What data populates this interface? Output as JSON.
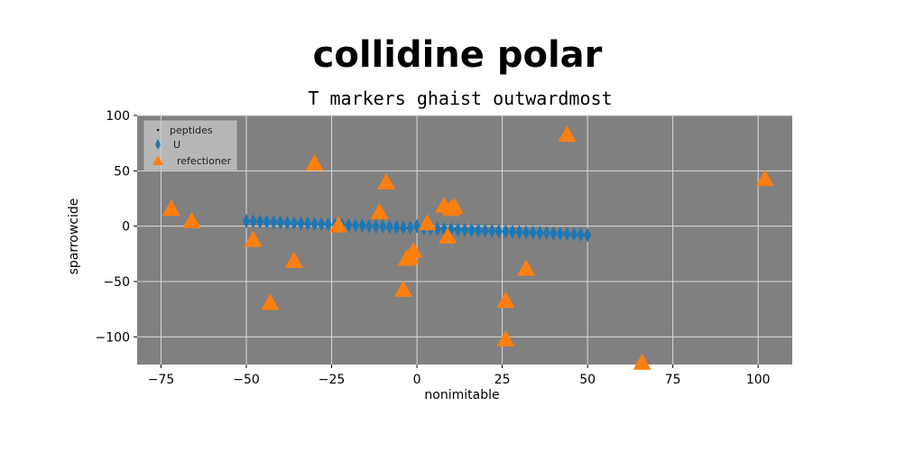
{
  "chart_data": {
    "type": "scatter",
    "title": "collidine polar",
    "subtitle": "T markers ghaist outwardmost",
    "xlabel": "nonimitable",
    "ylabel": "sparrowcide",
    "xlim": [
      -82,
      110
    ],
    "ylim": [
      -125,
      100
    ],
    "x_ticks": [
      "−75",
      "−50",
      "−25",
      "0",
      "25",
      "50",
      "75",
      "100"
    ],
    "x_tick_values": [
      -75,
      -50,
      -25,
      0,
      25,
      50,
      75,
      100
    ],
    "y_ticks": [
      "100",
      "50",
      "0",
      "−50",
      "−100"
    ],
    "y_tick_values": [
      100,
      50,
      0,
      -50,
      -100
    ],
    "grid": true,
    "legend_position": "top-left",
    "background_color": "#808080",
    "series": [
      {
        "name": "peptides",
        "marker": "point",
        "color": "#222222",
        "x": [],
        "y": []
      },
      {
        "name": "U",
        "marker": "thin_diamond",
        "color": "#1f77b4",
        "x": [
          -50,
          -48,
          -46,
          -44,
          -42,
          -40,
          -38,
          -36,
          -34,
          -32,
          -30,
          -28,
          -26,
          -24,
          -22,
          -20,
          -18,
          -16,
          -14,
          -12,
          -10,
          -8,
          -6,
          -4,
          -2,
          0,
          2,
          4,
          6,
          8,
          10,
          12,
          14,
          16,
          18,
          20,
          22,
          24,
          26,
          28,
          30,
          32,
          34,
          36,
          38,
          40,
          42,
          44,
          46,
          48,
          50
        ],
        "y": [
          4.5,
          4.4,
          4.1,
          3.9,
          3.7,
          3.4,
          3.2,
          2.9,
          2.6,
          2.4,
          2.1,
          1.9,
          1.7,
          1.3,
          1.1,
          0.8,
          0.6,
          0.4,
          0.1,
          -0.2,
          -0.4,
          -0.6,
          -0.9,
          -1.1,
          -1.3,
          0,
          -1.8,
          -2.1,
          -2.4,
          -2.6,
          -2.8,
          -3.1,
          -3.3,
          -3.6,
          -3.9,
          -4.1,
          -4.3,
          -4.6,
          -4.8,
          -5.1,
          -5.4,
          -5.6,
          -5.8,
          -6.1,
          -6.3,
          -6.6,
          -6.9,
          -7.1,
          -7.3,
          -7.6,
          -7.9
        ]
      },
      {
        "name": "refectioner",
        "marker": "triangle",
        "color": "#ff7f0e",
        "x": [
          -72,
          -66,
          -48,
          -43,
          -36,
          -30,
          -23,
          -11,
          -9,
          -4,
          -3,
          -2,
          -1,
          3,
          8,
          9,
          10,
          11,
          26,
          26,
          32,
          44,
          66,
          102
        ],
        "y": [
          15,
          4,
          -13,
          -70,
          -32,
          56,
          0,
          12,
          39,
          -58,
          -30,
          -28,
          -23,
          2,
          18,
          -10,
          15,
          17,
          -68,
          -103,
          -39,
          82,
          -124,
          42
        ]
      }
    ]
  }
}
